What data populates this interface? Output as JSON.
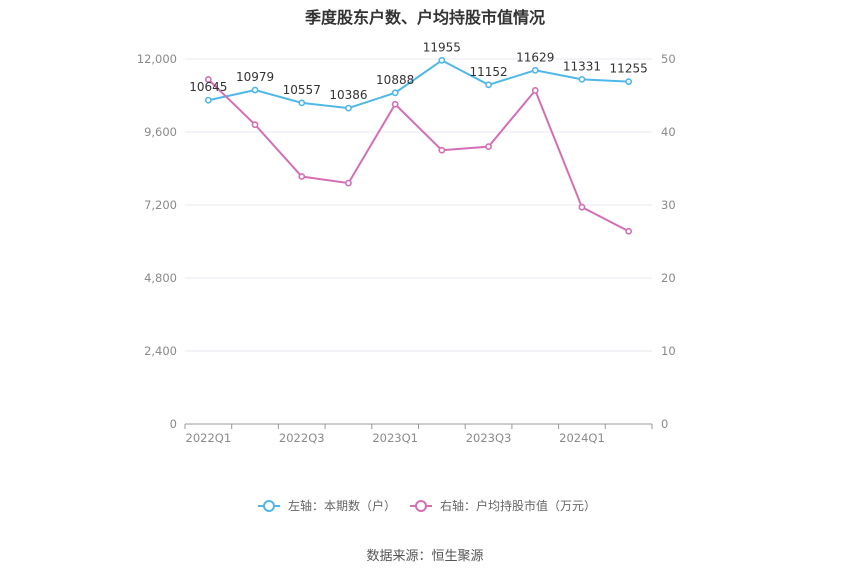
{
  "title": "季度股东户数、户均持股市值情况",
  "source": "数据来源：恒生聚源",
  "colors": {
    "left_series": "#4fb8e8",
    "right_series": "#d56eb3",
    "grid": "#e4e8f0",
    "axis": "#999999"
  },
  "chart_data": {
    "type": "line",
    "x": [
      "2022Q1",
      "2022Q2",
      "2022Q3",
      "2022Q4",
      "2023Q1",
      "2023Q2",
      "2023Q3",
      "2023Q4",
      "2024Q1",
      "2024Q2"
    ],
    "x_tick_labels": [
      "2022Q1",
      "",
      "2022Q3",
      "",
      "2023Q1",
      "",
      "2023Q3",
      "",
      "2024Q1",
      ""
    ],
    "left_axis": {
      "ylim": [
        0,
        12000
      ],
      "ticks": [
        "0",
        "2,400",
        "4,800",
        "7,200",
        "9,600",
        "12,000"
      ]
    },
    "right_axis": {
      "ylim": [
        0,
        50
      ],
      "ticks": [
        "0",
        "10",
        "20",
        "30",
        "40",
        "50"
      ]
    },
    "series": [
      {
        "name": "左轴：本期数（户）",
        "axis": "left",
        "values": [
          10645,
          10979,
          10557,
          10386,
          10888,
          11955,
          11152,
          11629,
          11331,
          11255
        ],
        "labels": [
          "10645",
          "10979",
          "10557",
          "10386",
          "10888",
          "11955",
          "11152",
          "11629",
          "11331",
          "11255"
        ]
      },
      {
        "name": "右轴：户均持股市值（万元）",
        "axis": "right",
        "values": [
          47.2,
          41.0,
          33.9,
          33.0,
          43.8,
          37.5,
          38.0,
          45.7,
          29.7,
          26.4
        ]
      }
    ],
    "grid": true,
    "legend": "bottom-center"
  }
}
